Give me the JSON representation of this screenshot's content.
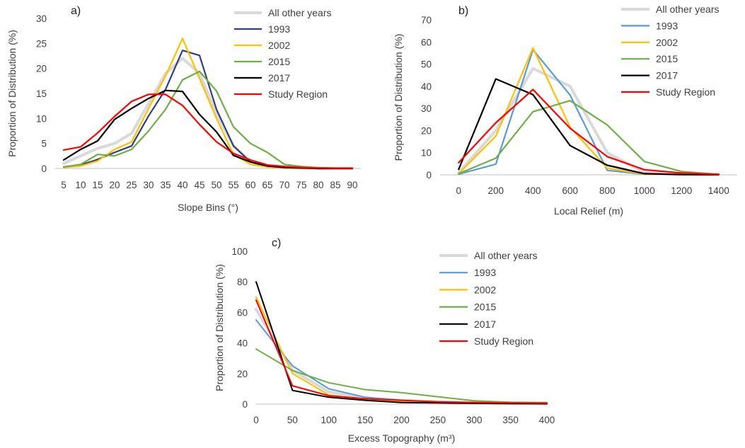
{
  "colors": {
    "other_years": "#d9d9d9",
    "1993": "#5b9bd5",
    "2002": "#ffc000",
    "2015": "#70ad47",
    "2017": "#000000",
    "study_region": "#ff0000",
    "1993_panel_a": "#2f3f7f"
  },
  "chart_data": [
    {
      "type": "line",
      "panel_label": "a)",
      "xlabel": "Slope Bins (°)",
      "ylabel": "Proportion of Distribution (%)",
      "categories": [
        "5",
        "10",
        "15",
        "20",
        "25",
        "30",
        "35",
        "40",
        "45",
        "50",
        "55",
        "60",
        "65",
        "70",
        "75",
        "80",
        "85",
        "90"
      ],
      "ylim": [
        0,
        30
      ],
      "yticks": [
        0,
        5,
        10,
        15,
        20,
        25,
        30
      ],
      "legend": [
        "All other years",
        "1993",
        "2002",
        "2015",
        "2017",
        "Study Region"
      ],
      "legend_position": "top-right",
      "series": [
        {
          "name": "All other years",
          "key": "other_years",
          "values": [
            1.0,
            2.5,
            4.0,
            5.0,
            7.0,
            13.0,
            19.0,
            22.0,
            19.0,
            11.0,
            4.5,
            1.5,
            0.5,
            0.2,
            0.1,
            0,
            0,
            0
          ]
        },
        {
          "name": "1993",
          "key": "1993_panel_a",
          "values": [
            0.3,
            0.7,
            1.8,
            3.2,
            4.5,
            10.5,
            15.8,
            23.6,
            22.6,
            11.8,
            4.5,
            1.3,
            0.4,
            0.1,
            0.05,
            0,
            0,
            0
          ]
        },
        {
          "name": "2002",
          "key": "2002",
          "values": [
            0.2,
            0.5,
            1.5,
            3.8,
            5.3,
            12.0,
            18.5,
            26.0,
            18.0,
            10.0,
            2.8,
            0.8,
            0.3,
            0.1,
            0.05,
            0,
            0,
            0
          ]
        },
        {
          "name": "2015",
          "key": "2015",
          "values": [
            0.3,
            0.8,
            2.8,
            2.5,
            3.8,
            7.5,
            11.8,
            17.7,
            19.4,
            15.5,
            8.3,
            5.0,
            3.2,
            0.8,
            0.4,
            0.15,
            0.05,
            0.05
          ]
        },
        {
          "name": "2017",
          "key": "2017",
          "values": [
            1.7,
            3.8,
            5.5,
            9.8,
            12.0,
            14.0,
            15.6,
            15.4,
            10.8,
            7.3,
            2.6,
            1.3,
            0.5,
            0.2,
            0.1,
            0,
            0,
            0
          ]
        },
        {
          "name": "Study Region",
          "key": "study_region",
          "values": [
            3.7,
            4.3,
            7.1,
            10.4,
            13.4,
            14.8,
            14.8,
            12.6,
            8.8,
            5.3,
            3.0,
            1.7,
            0.7,
            0.4,
            0.2,
            0.1,
            0.05,
            0.05
          ]
        }
      ]
    },
    {
      "type": "line",
      "panel_label": "b)",
      "xlabel": "Local Relief (m)",
      "ylabel": "Proportion of Distribution (%)",
      "categories": [
        "0",
        "200",
        "400",
        "600",
        "800",
        "1000",
        "1200",
        "1400"
      ],
      "ylim": [
        0,
        70
      ],
      "yticks": [
        0,
        10,
        20,
        30,
        40,
        50,
        60,
        70
      ],
      "legend": [
        "All other years",
        "1993",
        "2002",
        "2015",
        "2017",
        "Study Region"
      ],
      "legend_position": "top-right",
      "series": [
        {
          "name": "All other years",
          "key": "other_years",
          "values": [
            1.0,
            20.0,
            48.0,
            40.0,
            10.0,
            1.0,
            0.3,
            0.1
          ]
        },
        {
          "name": "1993",
          "key": "1993",
          "values": [
            0.3,
            4.8,
            56.5,
            36.0,
            2.0,
            0.3,
            0.1,
            0.05
          ]
        },
        {
          "name": "2002",
          "key": "2002",
          "values": [
            0.5,
            17.5,
            57.3,
            21.5,
            3.0,
            0.3,
            0.1,
            0.05
          ]
        },
        {
          "name": "2015",
          "key": "2015",
          "values": [
            0.5,
            7.5,
            28.5,
            33.5,
            22.5,
            6.0,
            1.5,
            0.2
          ]
        },
        {
          "name": "2017",
          "key": "2017",
          "values": [
            2.5,
            43.3,
            36.2,
            13.2,
            4.3,
            0.5,
            0.1,
            0.05
          ]
        },
        {
          "name": "Study Region",
          "key": "study_region",
          "values": [
            5.5,
            23.5,
            38.5,
            21.0,
            8.2,
            2.3,
            0.8,
            0.2
          ]
        }
      ]
    },
    {
      "type": "line",
      "panel_label": "c)",
      "xlabel": "Excess Topography (m³)",
      "ylabel": "Proportion of Distribution (%)",
      "x": [
        0,
        50,
        100,
        150,
        200,
        250,
        300,
        350,
        400
      ],
      "xlim": [
        0,
        400
      ],
      "xticks": [
        0,
        50,
        100,
        150,
        200,
        250,
        300,
        350,
        400
      ],
      "ylim": [
        0,
        100
      ],
      "yticks": [
        0,
        20,
        40,
        60,
        80,
        100
      ],
      "legend": [
        "All other years",
        "1993",
        "2002",
        "2015",
        "2017",
        "Study Region"
      ],
      "legend_position": "top-right",
      "series": [
        {
          "name": "All other years",
          "key": "other_years",
          "values": [
            62,
            22,
            8,
            4,
            2.5,
            1.5,
            1.0,
            0.8,
            0.6
          ]
        },
        {
          "name": "1993",
          "key": "1993",
          "values": [
            55,
            25,
            10,
            4.5,
            2.5,
            1.5,
            1.0,
            0.8,
            0.5
          ]
        },
        {
          "name": "2002",
          "key": "2002",
          "values": [
            70,
            20,
            6,
            3,
            1.5,
            1.0,
            0.6,
            0.4,
            0.3
          ]
        },
        {
          "name": "2015",
          "key": "2015",
          "values": [
            36,
            22,
            14,
            9.5,
            7.5,
            4.8,
            2.2,
            1.2,
            1.0
          ]
        },
        {
          "name": "2017",
          "key": "2017",
          "values": [
            80,
            9,
            4.5,
            2.5,
            1.0,
            0.8,
            0.5,
            0.3,
            0.2
          ]
        },
        {
          "name": "Study Region",
          "key": "study_region",
          "values": [
            68,
            12,
            5.5,
            3.5,
            2.5,
            1.5,
            1.0,
            0.8,
            0.6
          ]
        }
      ]
    }
  ]
}
